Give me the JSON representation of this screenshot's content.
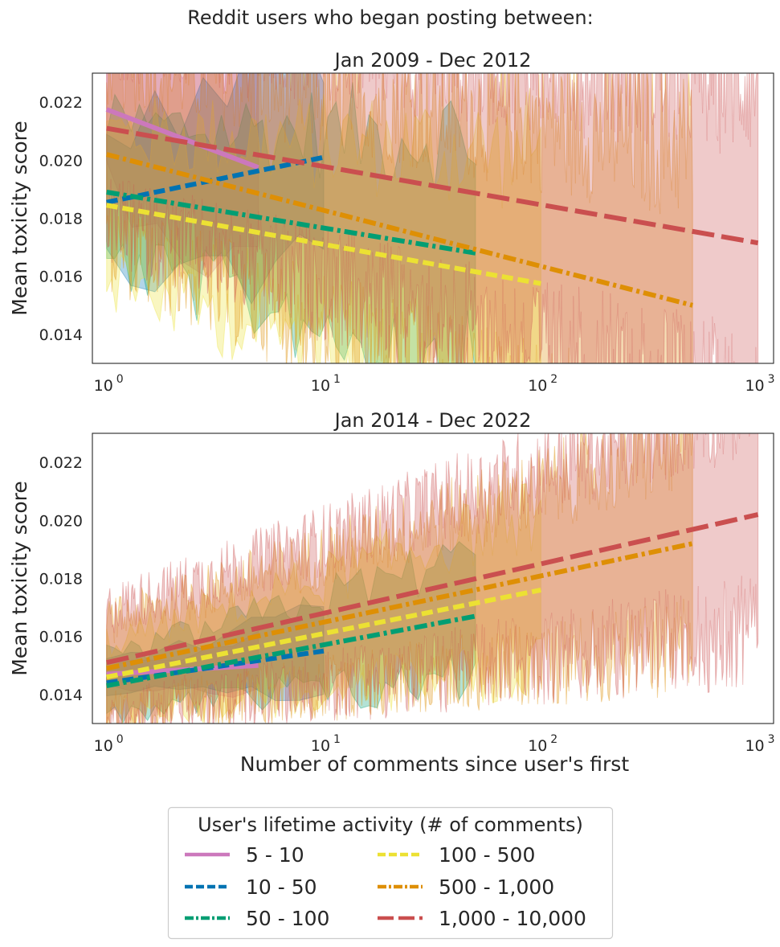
{
  "figure": {
    "suptitle": "Reddit users who began posting between:"
  },
  "chart_data": [
    {
      "type": "line",
      "title": "Jan 2009 - Dec 2012",
      "xlabel": "",
      "ylabel": "Mean toxicity score",
      "xscale": "log",
      "xlim": [
        0.86,
        1180
      ],
      "ylim": [
        0.013,
        0.023
      ],
      "yticks": [
        "0.014",
        "0.016",
        "0.018",
        "0.020",
        "0.022"
      ],
      "xticks": [
        {
          "base": "10",
          "exp": "0"
        },
        {
          "base": "10",
          "exp": "1"
        },
        {
          "base": "10",
          "exp": "2"
        },
        {
          "base": "10",
          "exp": "3"
        }
      ],
      "series": [
        {
          "name": "5 - 10",
          "x_start": 1,
          "x_end": 5,
          "y_start": 0.02175,
          "y_end": 0.01975,
          "ci_low": 0.0172,
          "ci_high": 0.0235
        },
        {
          "name": "10 - 50",
          "x_start": 1,
          "x_end": 10,
          "y_start": 0.01855,
          "y_end": 0.0201,
          "ci_low": 0.016,
          "ci_high": 0.0222
        },
        {
          "name": "50 - 100",
          "x_start": 1,
          "x_end": 50,
          "y_start": 0.0189,
          "y_end": 0.0168,
          "ci_low": 0.0145,
          "ci_high": 0.021
        },
        {
          "name": "100 - 500",
          "x_start": 1,
          "x_end": 100,
          "y_start": 0.01845,
          "y_end": 0.01575,
          "ci_low": 0.014,
          "ci_high": 0.0212
        },
        {
          "name": "500 - 1,000",
          "x_start": 1,
          "x_end": 500,
          "y_start": 0.0202,
          "y_end": 0.015,
          "ci_low": 0.0135,
          "ci_high": 0.0225
        },
        {
          "name": "1,000 - 10,000",
          "x_start": 1,
          "x_end": 1000,
          "y_start": 0.0211,
          "y_end": 0.01715,
          "ci_low": 0.014,
          "ci_high": 0.0232
        }
      ]
    },
    {
      "type": "line",
      "title": "Jan 2014 - Dec 2022",
      "xlabel": "Number of comments since user's first",
      "ylabel": "Mean toxicity score",
      "xscale": "log",
      "xlim": [
        0.86,
        1180
      ],
      "ylim": [
        0.013,
        0.023
      ],
      "yticks": [
        "0.014",
        "0.016",
        "0.018",
        "0.020",
        "0.022"
      ],
      "xticks": [
        {
          "base": "10",
          "exp": "0"
        },
        {
          "base": "10",
          "exp": "1"
        },
        {
          "base": "10",
          "exp": "2"
        },
        {
          "base": "10",
          "exp": "3"
        }
      ],
      "series": [
        {
          "name": "5 - 10",
          "x_start": 1,
          "x_end": 5,
          "y_start": 0.0147,
          "y_end": 0.015,
          "ci_low": 0.0142,
          "ci_high": 0.0158
        },
        {
          "name": "10 - 50",
          "x_start": 1,
          "x_end": 10,
          "y_start": 0.0144,
          "y_end": 0.0155,
          "ci_low": 0.0138,
          "ci_high": 0.0163
        },
        {
          "name": "50 - 100",
          "x_start": 1,
          "x_end": 50,
          "y_start": 0.0143,
          "y_end": 0.0167,
          "ci_low": 0.0135,
          "ci_high": 0.0177
        },
        {
          "name": "100 - 500",
          "x_start": 1,
          "x_end": 100,
          "y_start": 0.0146,
          "y_end": 0.0176,
          "ci_low": 0.0135,
          "ci_high": 0.0188
        },
        {
          "name": "500 - 1,000",
          "x_start": 1,
          "x_end": 500,
          "y_start": 0.0149,
          "y_end": 0.0192,
          "ci_low": 0.014,
          "ci_high": 0.021
        },
        {
          "name": "1,000 - 10,000",
          "x_start": 1,
          "x_end": 1000,
          "y_start": 0.0151,
          "y_end": 0.0202,
          "ci_low": 0.0142,
          "ci_high": 0.0222
        }
      ]
    }
  ],
  "legend": {
    "title": "User's lifetime activity (# of comments)",
    "placement": "bottom-center",
    "columns": 2,
    "items": [
      {
        "label": "5 - 10",
        "color": "#cc78bc",
        "style": "solid"
      },
      {
        "label": "10 - 50",
        "color": "#0173b2",
        "style": "dashed"
      },
      {
        "label": "50 - 100",
        "color": "#029e73",
        "style": "dashdot"
      },
      {
        "label": "100 - 500",
        "color": "#ece133",
        "style": "dashed"
      },
      {
        "label": "500 - 1,000",
        "color": "#de8f05",
        "style": "dashdot"
      },
      {
        "label": "1,000 - 10,000",
        "color": "#ca4f4f",
        "style": "longdash"
      }
    ]
  }
}
